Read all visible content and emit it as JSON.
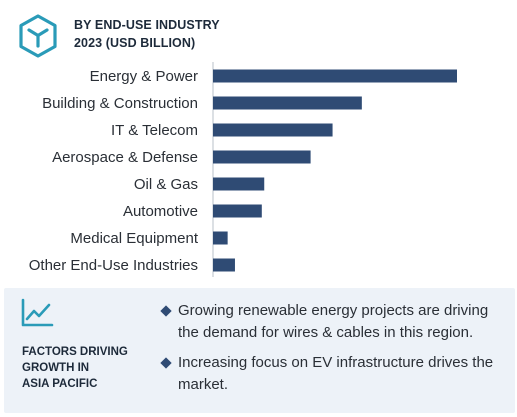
{
  "header": {
    "title_line1": "BY END-USE INDUSTRY",
    "title_line2": "2023 (USD BILLION)",
    "logo_icon": "cube-icon",
    "accent_color": "#2a9bb8"
  },
  "chart_data": {
    "type": "bar",
    "orientation": "horizontal",
    "categories": [
      "Energy & Power",
      "Building & Construction",
      "IT & Telecom",
      "Aerospace & Defense",
      "Oil & Gas",
      "Automotive",
      "Medical Equipment",
      "Other End-Use Industries"
    ],
    "values": [
      100,
      61,
      49,
      40,
      21,
      20,
      6,
      9
    ],
    "value_scale": "relative (no axis values printed)",
    "bar_color": "#2f4b74",
    "grid": false,
    "legend": "none"
  },
  "factors": {
    "icon": "growth-chart-icon",
    "title_lines": [
      "FACTORS DRIVING",
      "GROWTH IN",
      "ASIA PACIFIC"
    ],
    "bullets": [
      "Growing renewable energy projects are driving the demand for wires & cables in this region.",
      "Increasing focus on EV infrastructure drives the market."
    ],
    "background_color": "#edf2f8"
  }
}
